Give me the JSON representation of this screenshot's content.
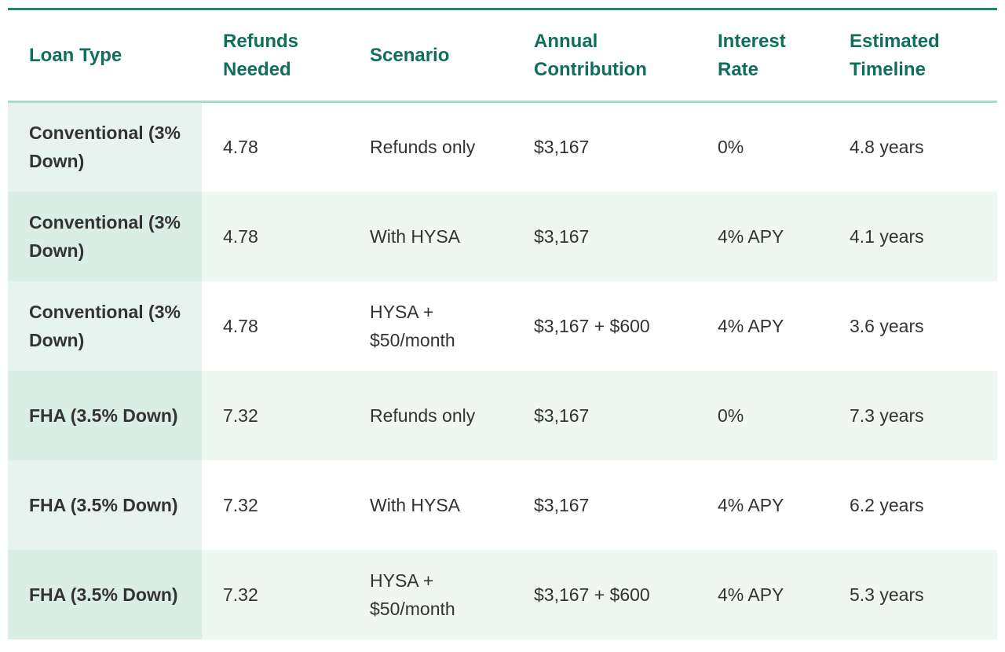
{
  "table": {
    "header": [
      "Loan Type",
      "Refunds Needed",
      "Scenario",
      "Annual Contribution",
      "Interest Rate",
      "Estimated Timeline"
    ],
    "rows": [
      [
        "Conventional (3% Down)",
        "4.78",
        "Refunds only",
        "$3,167",
        "0%",
        "4.8 years"
      ],
      [
        "Conventional (3% Down)",
        "4.78",
        "With HYSA",
        "$3,167",
        "4% APY",
        "4.1 years"
      ],
      [
        "Conventional (3% Down)",
        "4.78",
        "HYSA + $50/month",
        "$3,167 + $600",
        "4% APY",
        "3.6 years"
      ],
      [
        "FHA (3.5% Down)",
        "7.32",
        "Refunds only",
        "$3,167",
        "0%",
        "7.3 years"
      ],
      [
        "FHA (3.5% Down)",
        "7.32",
        "With HYSA",
        "$3,167",
        "4% APY",
        "6.2 years"
      ],
      [
        "FHA (3.5% Down)",
        "7.32",
        "HYSA + $50/month",
        "$3,167 + $600",
        "4% APY",
        "5.3 years"
      ]
    ]
  }
}
